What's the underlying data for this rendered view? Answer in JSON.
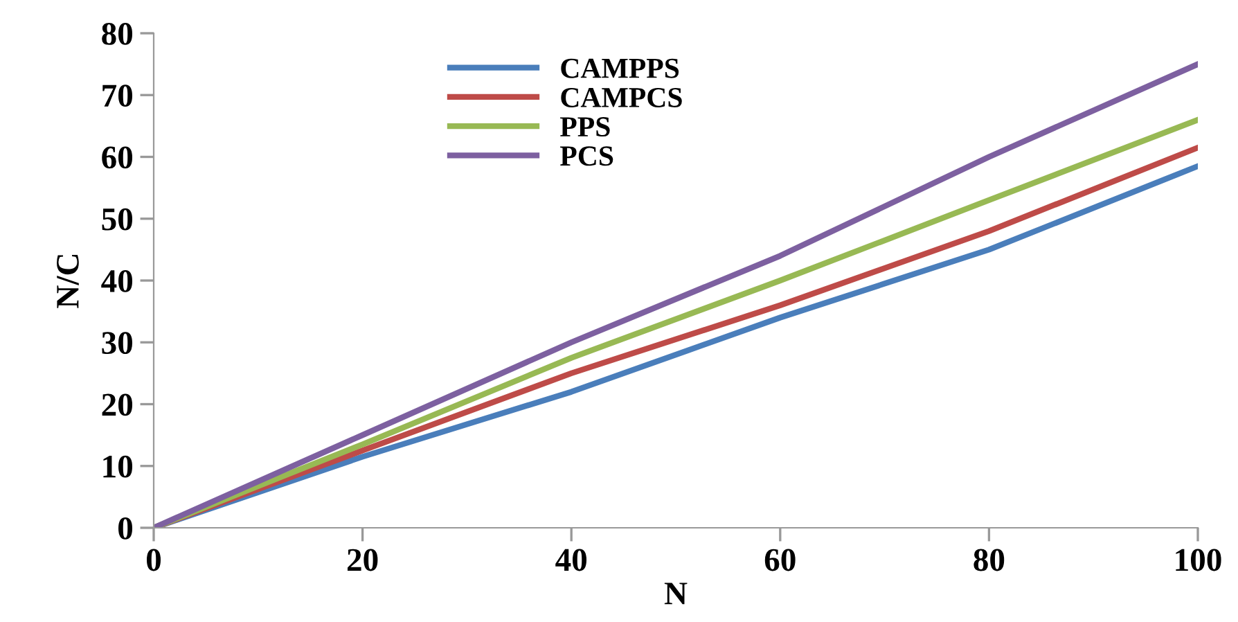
{
  "chart_data": {
    "type": "line",
    "xlabel": "N",
    "ylabel": "N/C",
    "x": [
      0,
      20,
      40,
      60,
      80,
      100
    ],
    "series": [
      {
        "name": "CAMPPS",
        "color": "#4a7ebb",
        "values": [
          0,
          11.5,
          22,
          34,
          45,
          58.5
        ]
      },
      {
        "name": "CAMPCS",
        "color": "#be4b48",
        "values": [
          0,
          12.5,
          25,
          36,
          48,
          61.5
        ]
      },
      {
        "name": "PPS",
        "color": "#98b954",
        "values": [
          0,
          13.5,
          27.5,
          40,
          53,
          66
        ]
      },
      {
        "name": "PCS",
        "color": "#7d60a0",
        "values": [
          0,
          15,
          30,
          44,
          60,
          75
        ]
      }
    ],
    "xlim": [
      0,
      100
    ],
    "xticks": [
      0,
      20,
      40,
      60,
      80,
      100
    ],
    "ylim": [
      0,
      80
    ],
    "yticks": [
      0,
      10,
      20,
      30,
      40,
      50,
      60,
      70,
      80
    ],
    "grid": false,
    "legend": "top",
    "line_style": "solid",
    "marker": "none"
  }
}
